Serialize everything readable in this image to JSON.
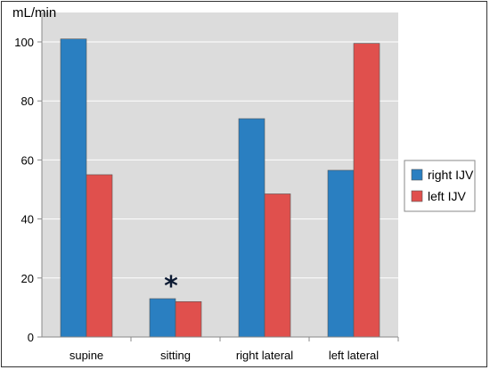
{
  "chart_data": {
    "type": "bar",
    "categories": [
      "supine",
      "sitting",
      "right lateral",
      "left lateral"
    ],
    "series": [
      {
        "name": "right IJV",
        "color": "#2a7fc1",
        "values": [
          101,
          13,
          74,
          56.5
        ]
      },
      {
        "name": "left IJV",
        "color": "#e0504d",
        "values": [
          55,
          12,
          48.5,
          99.5
        ]
      }
    ],
    "y_unit": "mL/min",
    "ylim": [
      0,
      100
    ],
    "yticks": [
      0,
      20,
      40,
      60,
      80,
      100
    ],
    "grid": true,
    "plot_background": "#dcdcdc",
    "legend_position": "right",
    "annotation": {
      "text": "*",
      "category": "sitting"
    }
  }
}
